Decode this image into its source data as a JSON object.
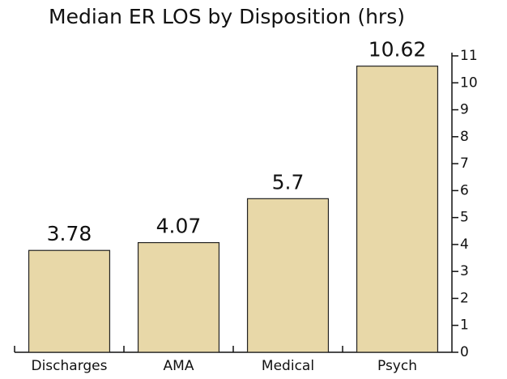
{
  "chart_data": {
    "type": "bar",
    "title": "Median ER LOS by Disposition (hrs)",
    "categories": [
      "Discharges",
      "AMA",
      "Medical",
      "Psych"
    ],
    "values": [
      3.78,
      4.07,
      5.7,
      10.62
    ],
    "color": "#e8d8a8",
    "ylim": [
      0,
      11
    ],
    "yticks": [
      0,
      1,
      2,
      3,
      4,
      5,
      6,
      7,
      8,
      9,
      10,
      11
    ],
    "y_axis_side": "right",
    "grid": false,
    "data_labels": true
  }
}
